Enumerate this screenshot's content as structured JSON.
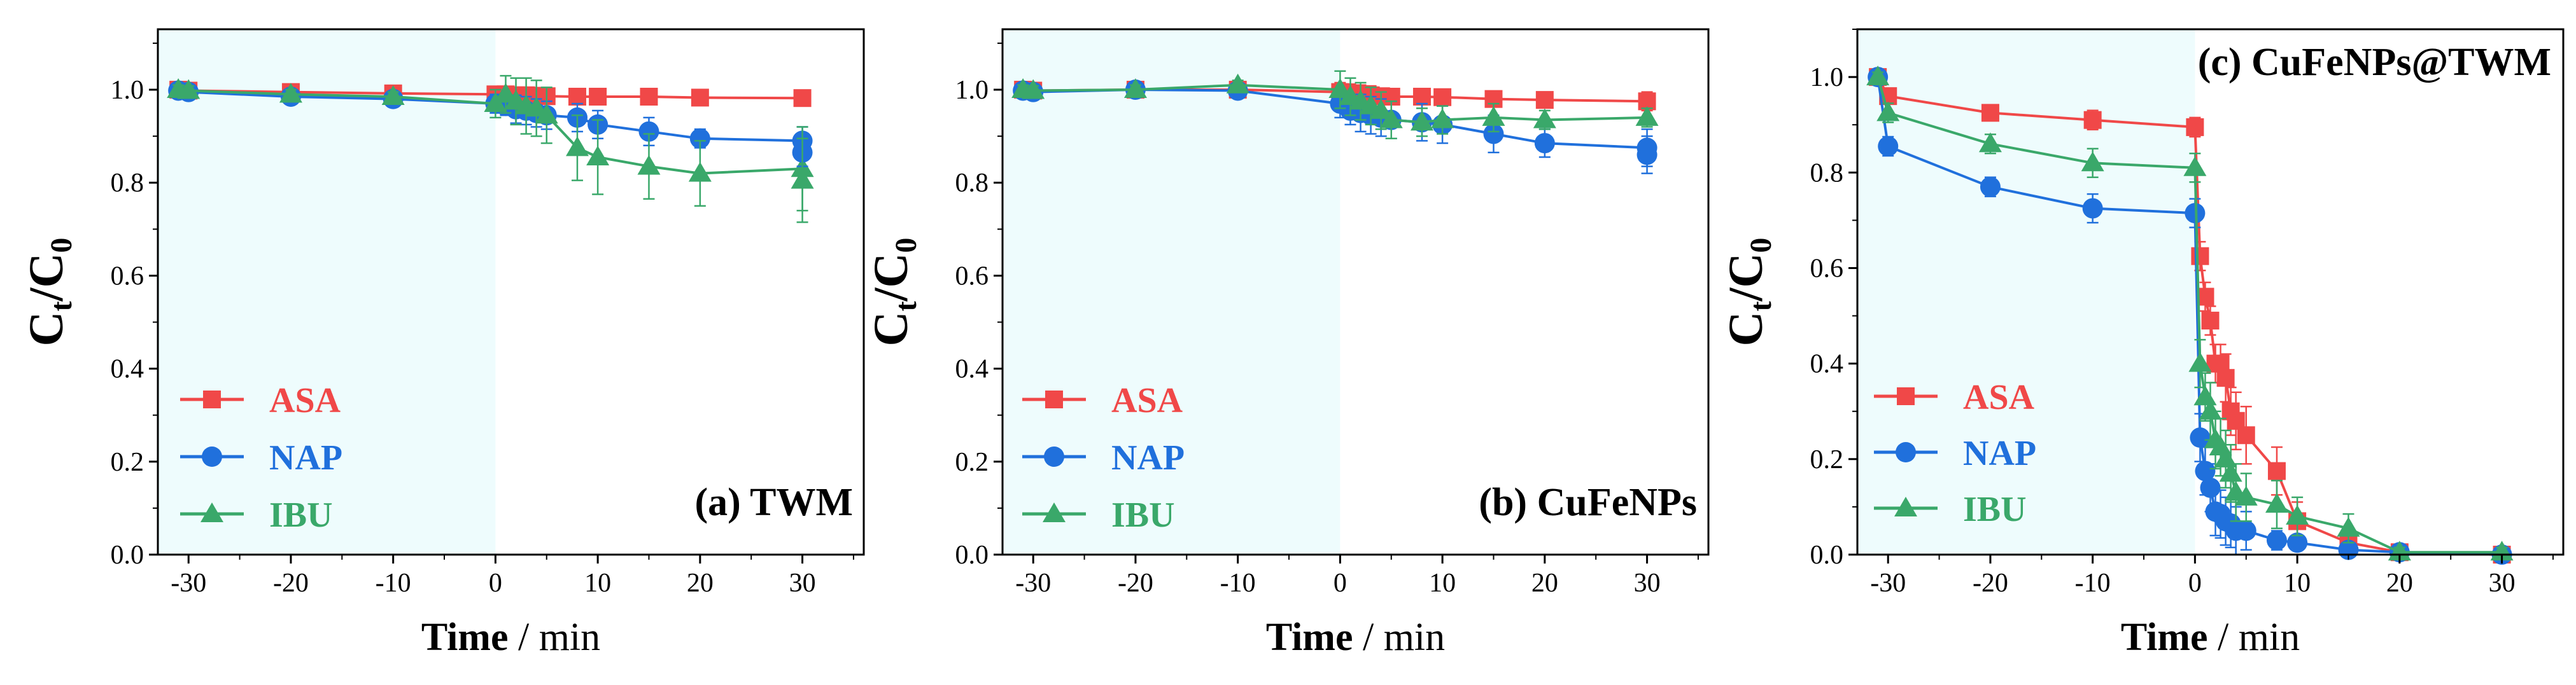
{
  "figure": {
    "shading_color": "#eefcfd",
    "series_colors": {
      "ASA": "#f04848",
      "NAP": "#2070dc",
      "IBU": "#3aa86a"
    },
    "marker_shapes": {
      "ASA": "square",
      "NAP": "circle",
      "IBU": "triangle"
    }
  },
  "chart_data": [
    {
      "type": "line",
      "panel_label": "(a) TWM",
      "xlabel_bold": "Time",
      "xlabel_rest": " / min",
      "ylabel_main": "C",
      "ylabel_sub1": "t",
      "ylabel_sep": "/C",
      "ylabel_sub2": "0",
      "xlim": [
        -33,
        36
      ],
      "ylim": [
        0,
        1.13
      ],
      "xticks": [
        -30,
        -20,
        -10,
        0,
        10,
        20,
        30
      ],
      "xtick_labels": [
        "-30",
        "-20",
        "-10",
        "0",
        "10",
        "20",
        "30"
      ],
      "yticks": [
        0,
        0.2,
        0.4,
        0.6,
        0.8,
        1.0
      ],
      "ytick_labels": [
        "0.0",
        "0.2",
        "0.4",
        "0.6",
        "0.8",
        "1.0"
      ],
      "shaded_x_range": [
        -33,
        0
      ],
      "legend_position": "bottom-left",
      "series": [
        {
          "name": "ASA",
          "x": [
            -31,
            -30,
            -20,
            -10,
            0,
            1,
            2,
            3,
            4,
            5,
            8,
            10,
            15,
            20,
            30
          ],
          "y": [
            1.0,
            0.998,
            0.995,
            0.992,
            0.99,
            0.99,
            0.988,
            0.988,
            0.987,
            0.986,
            0.985,
            0.985,
            0.985,
            0.983,
            0.982
          ],
          "err": [
            0.01,
            0.01,
            0.01,
            0.01,
            0.015,
            0.015,
            0.015,
            0.015,
            0.015,
            0.01,
            0.01,
            0.01,
            0.01,
            0.01,
            0.01
          ]
        },
        {
          "name": "NAP",
          "x": [
            -31,
            -30,
            -20,
            -10,
            0,
            1,
            2,
            3,
            4,
            5,
            8,
            10,
            15,
            20,
            30
          ],
          "y": [
            0.998,
            0.995,
            0.985,
            0.98,
            0.97,
            0.965,
            0.958,
            0.955,
            0.95,
            0.945,
            0.94,
            0.925,
            0.91,
            0.895,
            0.89
          ],
          "err": [
            0.01,
            0.01,
            0.01,
            0.01,
            0.02,
            0.02,
            0.03,
            0.03,
            0.03,
            0.03,
            0.03,
            0.03,
            0.03,
            0.02,
            0.03
          ]
        },
        {
          "name": "IBU",
          "x": [
            -31,
            -30,
            -20,
            -10,
            0,
            1,
            2,
            3,
            4,
            5,
            8,
            10,
            15,
            20,
            30
          ],
          "y": [
            1.0,
            0.998,
            0.99,
            0.985,
            0.97,
            0.99,
            0.975,
            0.965,
            0.96,
            0.945,
            0.875,
            0.855,
            0.835,
            0.82,
            0.83
          ],
          "err": [
            0.01,
            0.01,
            0.01,
            0.01,
            0.03,
            0.04,
            0.05,
            0.06,
            0.06,
            0.06,
            0.07,
            0.08,
            0.07,
            0.07,
            0.09
          ]
        },
        {
          "name": "NAP_2",
          "x": [
            30
          ],
          "y": [
            0.865
          ],
          "err": [
            0.03
          ]
        },
        {
          "name": "IBU_2",
          "x": [
            30
          ],
          "y": [
            0.805
          ],
          "err": [
            0.09
          ]
        }
      ],
      "legend": [
        {
          "name": "ASA",
          "label": "ASA"
        },
        {
          "name": "NAP",
          "label": "NAP"
        },
        {
          "name": "IBU",
          "label": "IBU"
        }
      ]
    },
    {
      "type": "line",
      "panel_label": "(b) CuFeNPs",
      "xlabel_bold": "Time",
      "xlabel_rest": " / min",
      "ylabel_main": "C",
      "ylabel_sub1": "t",
      "ylabel_sep": "/C",
      "ylabel_sub2": "0",
      "xlim": [
        -33,
        36
      ],
      "ylim": [
        0,
        1.13
      ],
      "xticks": [
        -30,
        -20,
        -10,
        0,
        10,
        20,
        30
      ],
      "xtick_labels": [
        "-30",
        "-20",
        "-10",
        "0",
        "10",
        "20",
        "30"
      ],
      "yticks": [
        0,
        0.2,
        0.4,
        0.6,
        0.8,
        1.0
      ],
      "ytick_labels": [
        "0.0",
        "0.2",
        "0.4",
        "0.6",
        "0.8",
        "1.0"
      ],
      "shaded_x_range": [
        -33,
        0
      ],
      "legend_position": "bottom-left",
      "series": [
        {
          "name": "ASA",
          "x": [
            -31,
            -30,
            -20,
            -10,
            0,
            1,
            2,
            3,
            4,
            5,
            8,
            10,
            15,
            20,
            30
          ],
          "y": [
            1.0,
            0.998,
            1.0,
            1.0,
            0.995,
            0.992,
            0.99,
            0.988,
            0.986,
            0.985,
            0.985,
            0.984,
            0.98,
            0.978,
            0.975
          ],
          "err": [
            0.01,
            0.01,
            0.01,
            0.01,
            0.02,
            0.02,
            0.02,
            0.02,
            0.01,
            0.01,
            0.01,
            0.01,
            0.01,
            0.01,
            0.02
          ]
        },
        {
          "name": "NAP",
          "x": [
            -31,
            -30,
            -20,
            -10,
            0,
            1,
            2,
            3,
            4,
            5,
            8,
            10,
            15,
            20,
            30
          ],
          "y": [
            0.998,
            0.995,
            1.0,
            0.998,
            0.97,
            0.955,
            0.95,
            0.945,
            0.94,
            0.935,
            0.93,
            0.925,
            0.905,
            0.885,
            0.875
          ],
          "err": [
            0.01,
            0.01,
            0.01,
            0.01,
            0.03,
            0.03,
            0.04,
            0.04,
            0.04,
            0.04,
            0.04,
            0.04,
            0.04,
            0.03,
            0.04
          ]
        },
        {
          "name": "IBU",
          "x": [
            -31,
            -30,
            -20,
            -10,
            0,
            1,
            2,
            3,
            4,
            5,
            8,
            10,
            15,
            20,
            30
          ],
          "y": [
            1.0,
            0.998,
            1.0,
            1.01,
            1.0,
            0.985,
            0.975,
            0.965,
            0.955,
            0.935,
            0.93,
            0.935,
            0.94,
            0.935,
            0.94
          ],
          "err": [
            0.01,
            0.01,
            0.01,
            0.01,
            0.04,
            0.04,
            0.04,
            0.04,
            0.04,
            0.04,
            0.03,
            0.03,
            0.03,
            0.02,
            0.02
          ]
        },
        {
          "name": "NAP_2",
          "x": [
            30
          ],
          "y": [
            0.86
          ],
          "err": [
            0.04
          ]
        }
      ],
      "legend": [
        {
          "name": "ASA",
          "label": "ASA"
        },
        {
          "name": "NAP",
          "label": "NAP"
        },
        {
          "name": "IBU",
          "label": "IBU"
        }
      ]
    },
    {
      "type": "line",
      "panel_label": "(c) CuFeNPs@TWM",
      "xlabel_bold": "Time",
      "xlabel_rest": " / min",
      "ylabel_main": "C",
      "ylabel_sub1": "t",
      "ylabel_sep": "/C",
      "ylabel_sub2": "0",
      "xlim": [
        -33,
        36
      ],
      "ylim": [
        0,
        1.1
      ],
      "xticks": [
        -30,
        -20,
        -10,
        0,
        10,
        20,
        30
      ],
      "xtick_labels": [
        "-30",
        "-20",
        "-10",
        "0",
        "10",
        "20",
        "30"
      ],
      "yticks": [
        0,
        0.2,
        0.4,
        0.6,
        0.8,
        1.0
      ],
      "ytick_labels": [
        "0.0",
        "0.2",
        "0.4",
        "0.6",
        "0.8",
        "1.0"
      ],
      "shaded_x_range": [
        -33,
        0
      ],
      "legend_position": "center-left",
      "series": [
        {
          "name": "ASA",
          "x": [
            -31,
            -30,
            -20,
            -10,
            0,
            0.5,
            1,
            1.5,
            2,
            2.5,
            3,
            3.5,
            4,
            5,
            8,
            10,
            15,
            20,
            30
          ],
          "y": [
            1.0,
            0.96,
            0.925,
            0.91,
            0.895,
            0.625,
            0.54,
            0.49,
            0.4,
            0.4,
            0.37,
            0.3,
            0.28,
            0.25,
            0.175,
            0.07,
            0.025,
            0.005,
            0.0
          ],
          "err": [
            0.01,
            0.01,
            0.01,
            0.02,
            0.02,
            0.03,
            0.03,
            0.03,
            0.04,
            0.04,
            0.05,
            0.05,
            0.06,
            0.06,
            0.05,
            0.04,
            0.02,
            0.01,
            0.01
          ]
        },
        {
          "name": "NAP",
          "x": [
            -31,
            -30,
            -20,
            -10,
            0,
            0.5,
            1,
            1.5,
            2,
            2.5,
            3,
            3.5,
            4,
            5,
            8,
            10,
            15,
            20,
            30
          ],
          "y": [
            1.0,
            0.855,
            0.77,
            0.725,
            0.715,
            0.245,
            0.175,
            0.14,
            0.09,
            0.085,
            0.07,
            0.065,
            0.05,
            0.05,
            0.03,
            0.025,
            0.01,
            0.005,
            0.0
          ],
          "err": [
            0.01,
            0.02,
            0.02,
            0.03,
            0.03,
            0.05,
            0.05,
            0.05,
            0.05,
            0.05,
            0.05,
            0.05,
            0.05,
            0.04,
            0.02,
            0.01,
            0.01,
            0.01,
            0.01
          ]
        },
        {
          "name": "IBU",
          "x": [
            -31,
            -30,
            -20,
            -10,
            0,
            0.5,
            1,
            1.5,
            2,
            2.5,
            3,
            3.5,
            4,
            5,
            8,
            10,
            15,
            20,
            30
          ],
          "y": [
            1.0,
            0.925,
            0.86,
            0.82,
            0.81,
            0.4,
            0.33,
            0.3,
            0.24,
            0.225,
            0.2,
            0.17,
            0.13,
            0.12,
            0.105,
            0.08,
            0.055,
            0.005,
            0.005
          ],
          "err": [
            0.01,
            0.02,
            0.02,
            0.03,
            0.03,
            0.05,
            0.05,
            0.06,
            0.06,
            0.06,
            0.06,
            0.06,
            0.06,
            0.05,
            0.05,
            0.04,
            0.03,
            0.01,
            0.01
          ]
        }
      ],
      "legend": [
        {
          "name": "ASA",
          "label": "ASA"
        },
        {
          "name": "NAP",
          "label": "NAP"
        },
        {
          "name": "IBU",
          "label": "IBU"
        }
      ]
    }
  ]
}
